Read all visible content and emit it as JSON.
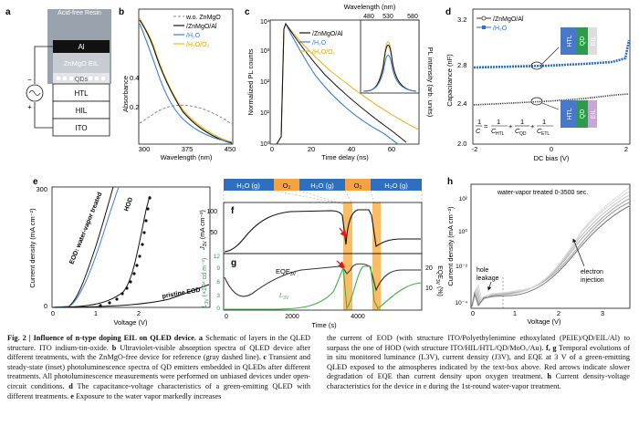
{
  "panels": {
    "a": {
      "letter": "a",
      "layers": [
        "Acid-free Resin",
        "Al",
        "ZnMgO EIL",
        "QDs",
        "HTL",
        "HIL",
        "ITO"
      ],
      "signs": [
        "−",
        "+"
      ]
    },
    "b": {
      "letter": "b",
      "ylabel": "Absorbance",
      "xlabel": "Wavelength (nm)",
      "yticks": [
        "0.4",
        "0.2"
      ],
      "xticks": [
        "300",
        "375",
        "450"
      ],
      "legend": [
        "w.o. ZnMgO",
        "/ZnMgO/Al",
        "/H₂O",
        "/H₂O/O₂"
      ]
    },
    "c": {
      "letter": "c",
      "ylabel": "Normalized PL counts",
      "xlabel": "Time delay (ns)",
      "top_label": "Wavelength (nm)",
      "top_ticks": [
        "480",
        "530",
        "580"
      ],
      "yticks": [
        "10⁰",
        "10¹",
        "10²",
        "10³",
        "10⁴"
      ],
      "xticks": [
        "0",
        "20",
        "40",
        "60"
      ],
      "right_label": "PL intensity (arb. units)",
      "legend": [
        "/ZnMgO/Al",
        "/H₂O",
        "/H₂O/O₂"
      ]
    },
    "d": {
      "letter": "d",
      "ylabel": "Capacitance (nF)",
      "xlabel": "DC bias (V)",
      "yticks": [
        "3.2",
        "2.8",
        "2.4",
        "2.0"
      ],
      "xticks": [
        "-2",
        "0",
        "2"
      ],
      "legend": [
        "/ZnMgO/Al",
        "/H₂O"
      ],
      "stack_labels": [
        "HTL",
        "QD",
        "EIL"
      ],
      "equation": {
        "lhs": "1",
        "lhs_den": "C",
        "t1": "1",
        "t1_den": "C",
        "t1_sub": "HTL",
        "t2": "1",
        "t2_den": "C",
        "t2_sub": "QD",
        "t3": "1",
        "t3_den": "C",
        "t3_sub": "ETL",
        "plus": "+",
        "eq": "="
      }
    },
    "e": {
      "letter": "e",
      "ylabel": "Current density (mA cm⁻²)",
      "xlabel": "Voltage (V)",
      "yticks": [
        "0",
        "300"
      ],
      "xticks": [
        "0",
        "1",
        "2"
      ],
      "labels": [
        "EOD: water-vapor treated",
        "HOD",
        "pristine EOD"
      ]
    },
    "fg": {
      "bands": [
        "H₂O (g)",
        "O₂",
        "H₂O (g)",
        "O₂",
        "H₂O (g)"
      ],
      "f_letter": "f",
      "f_ylabel": "J",
      "f_ylabel_sub": "3V",
      "f_ylabel_unit": " (mA cm⁻²)",
      "f_yticks": [
        "50",
        "100"
      ],
      "g_letter": "g",
      "g_left_label": "L",
      "g_left_sub": "3V",
      "g_left_unit": " (×10⁴ cd m⁻²)",
      "g_left_ticks": [
        "0",
        "3",
        "6",
        "9",
        "12"
      ],
      "g_right_label": "EQE",
      "g_right_sub": "3V",
      "g_right_unit": " (%)",
      "g_right_ticks": [
        "10",
        "20"
      ],
      "xticks": [
        "0",
        "2000",
        "4000"
      ],
      "xlabel": "Time (s)",
      "eqe_label": "EQE",
      "l_label": "L"
    },
    "h": {
      "letter": "h",
      "ylabel": "Current density (mA cm⁻²)",
      "xlabel": "Voltage (V)",
      "yticks": [
        "10⁻⁴",
        "10⁻²",
        "10⁰",
        "10²"
      ],
      "xticks": [
        "0",
        "1",
        "2",
        "3"
      ],
      "title": "water-vapor treated 0-3500 sec.",
      "annotations": [
        "hole",
        "leakage",
        "electron",
        "injection"
      ]
    }
  },
  "caption": {
    "fig": "Fig. 2 |",
    "title": "Influence of n-type doping EIL on QLED device.",
    "left": [
      {
        "b": "a",
        "t": "Schematic of layers in the QLED structure. ITO indium-tin-oxide. "
      },
      {
        "b": "b",
        "t": "Ultraviolet-visible absorption spectra of QLED device after different treatments, with the ZnMgO-free device for reference (gray dashed line). "
      },
      {
        "b": "c",
        "t": "Transient and steady-state (inset) photoluminescence spectra of QD emitters embedded in QLEDs after different treatments. All photoluminescence measurements were performed on unbiased devices under open-circuit conditions. "
      },
      {
        "b": "d",
        "t": "The capacitance-voltage characteristics of a green-emitting QLED with different treatments. "
      },
      {
        "b": "e",
        "t": "Exposure to the water vapor markedly increases"
      }
    ],
    "right": [
      {
        "b": "",
        "t": "the current of EOD (with structure ITO/Polyethylenimine ethoxylated (PEIE)/QD/EIL/Al) to surpass the one of HOD (with structure ITO/HIL/HTL/QD/MoOₓ/Au). "
      },
      {
        "b": "f, g",
        "t": "Temporal evolutions of in situ monitored luminance (L3V), current density (J3V), and EQE at 3 V of a green-emitting QLED exposed to the atmospheres indicated by the text-box above. Red arrows indicate slower degradation of EQE than current density upon oxygen treatment. "
      },
      {
        "b": "h",
        "t": "Current density-voltage characteristics for the device in e during the 1st-round water-vapor treatment."
      }
    ]
  }
}
